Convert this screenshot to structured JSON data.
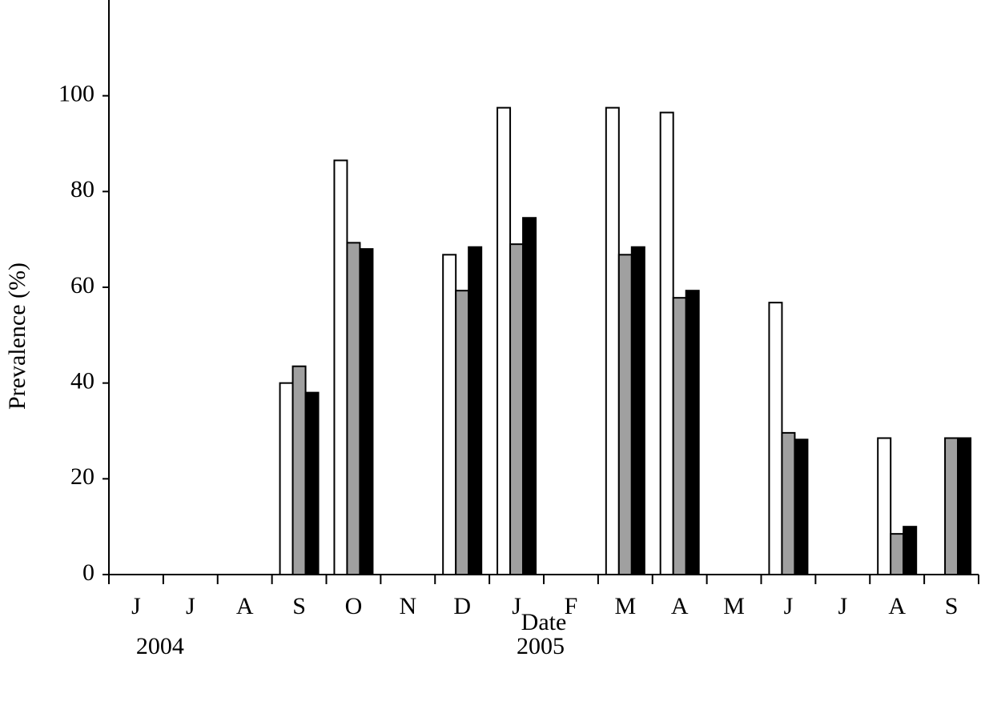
{
  "chart_data": {
    "type": "bar",
    "y_label": "Prevalence (%)",
    "x_label": "Date",
    "year_labels": [
      "2004",
      "2005"
    ],
    "categories": [
      "J",
      "J",
      "A",
      "S",
      "O",
      "N",
      "D",
      "J",
      "F",
      "M",
      "A",
      "M",
      "J",
      "J",
      "A",
      "S"
    ],
    "series": [
      {
        "color": "#ffffff",
        "values": [
          null,
          null,
          null,
          40,
          86.5,
          null,
          66.8,
          97.5,
          null,
          97.5,
          96.5,
          null,
          56.8,
          null,
          28.5,
          null
        ]
      },
      {
        "color": "#a0a0a0",
        "values": [
          null,
          null,
          null,
          43.5,
          69.3,
          null,
          59.3,
          69,
          null,
          66.8,
          57.8,
          null,
          29.6,
          null,
          8.5,
          28.5
        ]
      },
      {
        "color": "#000000",
        "values": [
          null,
          null,
          null,
          38,
          68,
          null,
          68.4,
          74.5,
          null,
          68.4,
          59.3,
          null,
          28.2,
          null,
          10,
          28.5
        ]
      }
    ],
    "ylim": [
      0,
      120
    ],
    "yticks": [
      0,
      20,
      40,
      60,
      80,
      100
    ],
    "grid": false
  }
}
